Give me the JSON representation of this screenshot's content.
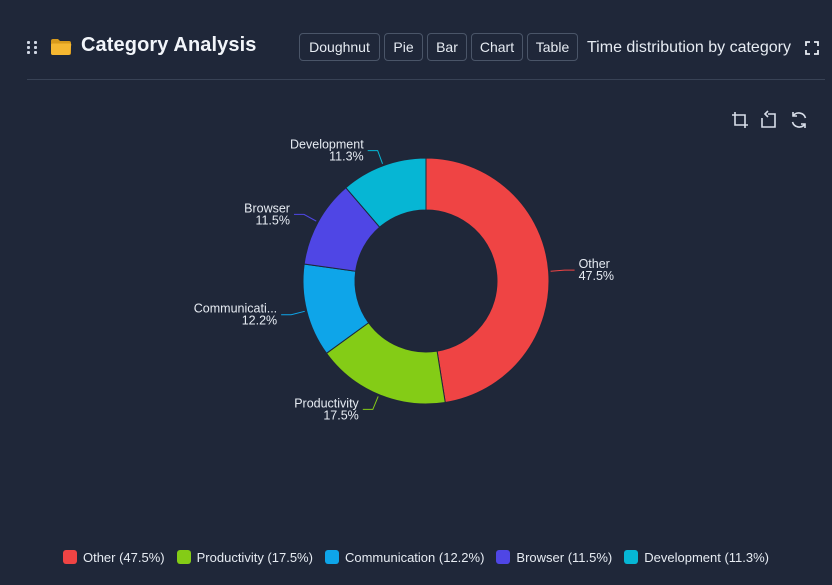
{
  "header": {
    "title": "Category Analysis",
    "buttons": [
      "Doughnut",
      "Pie",
      "Bar",
      "Chart",
      "Table"
    ],
    "subtitle": "Time distribution by category"
  },
  "icons": {
    "drag": "drag-handle-icon",
    "title": "folder-icon",
    "fullscreen": "fullscreen-icon",
    "toolbar": [
      "crop-icon",
      "restore-icon",
      "refresh-icon"
    ]
  },
  "colors": {
    "background": "#1f2739",
    "folder": "#f5b731"
  },
  "chart_data": {
    "type": "pie",
    "variant": "doughnut",
    "categories": [
      "Other",
      "Productivity",
      "Communication",
      "Browser",
      "Development"
    ],
    "series": [
      {
        "values": [
          47.5,
          17.5,
          12.2,
          11.5,
          11.3
        ],
        "colors": [
          "#ef4444",
          "#84cc16",
          "#0ea5e9",
          "#4f46e5",
          "#06b6d4"
        ]
      }
    ],
    "slice_labels": [
      {
        "name": "Other",
        "value": "47.5%"
      },
      {
        "name": "Productivity",
        "value": "17.5%"
      },
      {
        "name": "Communicati...",
        "value": "12.2%"
      },
      {
        "name": "Browser",
        "value": "11.5%"
      },
      {
        "name": "Development",
        "value": "11.3%"
      }
    ],
    "legend": {
      "position": "bottom",
      "entries": [
        "Other (47.5%)",
        "Productivity (17.5%)",
        "Communication (12.2%)",
        "Browser (11.5%)",
        "Development (11.3%)"
      ]
    }
  }
}
